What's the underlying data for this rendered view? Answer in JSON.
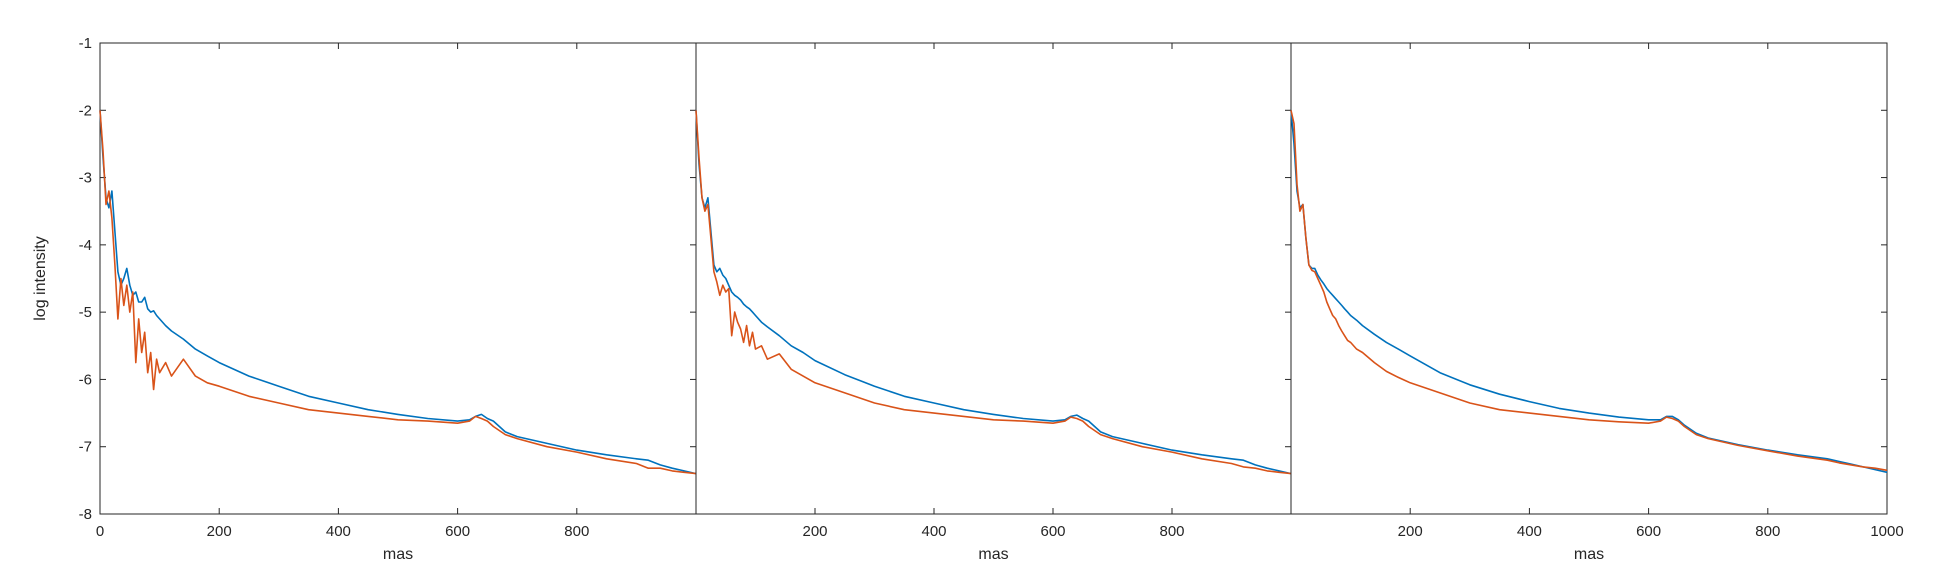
{
  "chart_data": [
    {
      "type": "line",
      "panel": "left",
      "xlabel": "mas",
      "ylabel": "log intensity",
      "xlim": [
        0,
        1000
      ],
      "ylim": [
        -8,
        -1
      ],
      "xticks": [
        0,
        200,
        400,
        600,
        800
      ],
      "yticks": [
        -8,
        -7,
        -6,
        -5,
        -4,
        -3,
        -2,
        -1
      ],
      "grid": false,
      "series": [
        {
          "color": "#0072BD",
          "x": [
            0,
            5,
            10,
            15,
            20,
            25,
            30,
            35,
            40,
            45,
            50,
            55,
            60,
            65,
            70,
            75,
            80,
            85,
            90,
            95,
            100,
            110,
            120,
            140,
            160,
            180,
            200,
            250,
            300,
            350,
            400,
            450,
            500,
            550,
            600,
            620,
            630,
            640,
            650,
            660,
            680,
            700,
            750,
            800,
            850,
            900,
            920,
            940,
            960,
            980,
            1000
          ],
          "y": [
            -2.0,
            -2.7,
            -3.3,
            -3.45,
            -3.2,
            -3.8,
            -4.4,
            -4.6,
            -4.5,
            -4.35,
            -4.6,
            -4.75,
            -4.7,
            -4.85,
            -4.85,
            -4.78,
            -4.95,
            -5.0,
            -4.98,
            -5.05,
            -5.1,
            -5.2,
            -5.28,
            -5.4,
            -5.55,
            -5.65,
            -5.75,
            -5.95,
            -6.1,
            -6.25,
            -6.35,
            -6.45,
            -6.52,
            -6.58,
            -6.62,
            -6.6,
            -6.55,
            -6.52,
            -6.58,
            -6.62,
            -6.78,
            -6.85,
            -6.95,
            -7.05,
            -7.12,
            -7.18,
            -7.2,
            -7.27,
            -7.32,
            -7.36,
            -7.4
          ]
        },
        {
          "color": "#D95319",
          "x": [
            0,
            5,
            10,
            15,
            20,
            25,
            30,
            35,
            40,
            45,
            50,
            55,
            60,
            65,
            70,
            75,
            80,
            85,
            90,
            95,
            100,
            110,
            120,
            140,
            160,
            180,
            200,
            250,
            300,
            350,
            400,
            450,
            500,
            550,
            600,
            620,
            630,
            640,
            650,
            660,
            680,
            700,
            750,
            800,
            850,
            900,
            920,
            940,
            960,
            980,
            1000
          ],
          "y": [
            -2.0,
            -2.6,
            -3.4,
            -3.2,
            -3.6,
            -4.3,
            -5.1,
            -4.5,
            -4.9,
            -4.6,
            -5.0,
            -4.7,
            -5.75,
            -5.1,
            -5.6,
            -5.3,
            -5.9,
            -5.6,
            -6.15,
            -5.7,
            -5.9,
            -5.75,
            -5.95,
            -5.7,
            -5.95,
            -6.05,
            -6.1,
            -6.25,
            -6.35,
            -6.45,
            -6.5,
            -6.55,
            -6.6,
            -6.62,
            -6.65,
            -6.62,
            -6.55,
            -6.58,
            -6.62,
            -6.7,
            -6.82,
            -6.88,
            -7.0,
            -7.08,
            -7.18,
            -7.25,
            -7.32,
            -7.32,
            -7.36,
            -7.38,
            -7.4
          ]
        }
      ]
    },
    {
      "type": "line",
      "panel": "middle",
      "xlabel": "mas",
      "ylabel": "",
      "xlim": [
        0,
        1000
      ],
      "ylim": [
        -8,
        -1
      ],
      "xticks": [
        200,
        400,
        600,
        800
      ],
      "yticks": [],
      "grid": false,
      "series": [
        {
          "color": "#0072BD",
          "x": [
            0,
            5,
            10,
            15,
            20,
            25,
            30,
            35,
            40,
            45,
            50,
            55,
            60,
            65,
            70,
            75,
            80,
            85,
            90,
            95,
            100,
            110,
            120,
            140,
            160,
            180,
            200,
            250,
            300,
            350,
            400,
            450,
            500,
            550,
            600,
            620,
            630,
            640,
            650,
            660,
            680,
            700,
            750,
            800,
            850,
            900,
            920,
            940,
            960,
            980,
            1000
          ],
          "y": [
            -2.0,
            -2.8,
            -3.3,
            -3.45,
            -3.3,
            -3.8,
            -4.3,
            -4.4,
            -4.35,
            -4.45,
            -4.5,
            -4.6,
            -4.7,
            -4.75,
            -4.78,
            -4.82,
            -4.88,
            -4.92,
            -4.95,
            -5.0,
            -5.05,
            -5.15,
            -5.22,
            -5.35,
            -5.5,
            -5.6,
            -5.72,
            -5.93,
            -6.1,
            -6.25,
            -6.35,
            -6.45,
            -6.52,
            -6.58,
            -6.62,
            -6.6,
            -6.55,
            -6.53,
            -6.58,
            -6.62,
            -6.78,
            -6.85,
            -6.95,
            -7.05,
            -7.12,
            -7.18,
            -7.2,
            -7.27,
            -7.32,
            -7.36,
            -7.4
          ]
        },
        {
          "color": "#D95319",
          "x": [
            0,
            5,
            10,
            15,
            20,
            25,
            30,
            35,
            40,
            45,
            50,
            55,
            60,
            65,
            70,
            75,
            80,
            85,
            90,
            95,
            100,
            110,
            120,
            140,
            160,
            180,
            200,
            250,
            300,
            350,
            400,
            450,
            500,
            550,
            600,
            620,
            630,
            640,
            650,
            660,
            680,
            700,
            750,
            800,
            850,
            900,
            920,
            940,
            960,
            980,
            1000
          ],
          "y": [
            -2.0,
            -2.7,
            -3.3,
            -3.5,
            -3.4,
            -3.9,
            -4.4,
            -4.55,
            -4.75,
            -4.6,
            -4.7,
            -4.65,
            -5.35,
            -5.0,
            -5.15,
            -5.25,
            -5.45,
            -5.2,
            -5.5,
            -5.3,
            -5.55,
            -5.5,
            -5.7,
            -5.62,
            -5.85,
            -5.95,
            -6.05,
            -6.2,
            -6.35,
            -6.45,
            -6.5,
            -6.55,
            -6.6,
            -6.62,
            -6.65,
            -6.62,
            -6.56,
            -6.58,
            -6.62,
            -6.7,
            -6.82,
            -6.88,
            -7.0,
            -7.08,
            -7.18,
            -7.25,
            -7.3,
            -7.32,
            -7.36,
            -7.38,
            -7.4
          ]
        }
      ]
    },
    {
      "type": "line",
      "panel": "right",
      "xlabel": "mas",
      "ylabel": "",
      "xlim": [
        0,
        1000
      ],
      "ylim": [
        -8,
        -1
      ],
      "xticks": [
        200,
        400,
        600,
        800,
        1000
      ],
      "yticks": [],
      "grid": false,
      "series": [
        {
          "color": "#0072BD",
          "x": [
            0,
            5,
            10,
            15,
            20,
            25,
            30,
            35,
            40,
            45,
            50,
            55,
            60,
            65,
            70,
            75,
            80,
            85,
            90,
            95,
            100,
            110,
            120,
            140,
            160,
            180,
            200,
            250,
            300,
            350,
            400,
            450,
            500,
            550,
            600,
            620,
            630,
            640,
            650,
            660,
            680,
            700,
            750,
            800,
            850,
            900,
            920,
            940,
            960,
            980,
            1000
          ],
          "y": [
            -2.0,
            -2.5,
            -3.2,
            -3.45,
            -3.4,
            -3.9,
            -4.3,
            -4.35,
            -4.35,
            -4.45,
            -4.52,
            -4.58,
            -4.65,
            -4.7,
            -4.75,
            -4.8,
            -4.85,
            -4.9,
            -4.95,
            -5.0,
            -5.05,
            -5.12,
            -5.2,
            -5.33,
            -5.45,
            -5.55,
            -5.65,
            -5.9,
            -6.08,
            -6.22,
            -6.33,
            -6.43,
            -6.5,
            -6.56,
            -6.6,
            -6.6,
            -6.55,
            -6.55,
            -6.6,
            -6.68,
            -6.8,
            -6.87,
            -6.97,
            -7.05,
            -7.12,
            -7.18,
            -7.22,
            -7.26,
            -7.3,
            -7.34,
            -7.38
          ]
        },
        {
          "color": "#D95319",
          "x": [
            0,
            5,
            10,
            15,
            20,
            25,
            30,
            35,
            40,
            45,
            50,
            55,
            60,
            65,
            70,
            75,
            80,
            85,
            90,
            95,
            100,
            110,
            120,
            140,
            160,
            180,
            200,
            250,
            300,
            350,
            400,
            450,
            500,
            550,
            600,
            620,
            630,
            640,
            650,
            660,
            680,
            700,
            750,
            800,
            850,
            900,
            920,
            940,
            960,
            980,
            1000
          ],
          "y": [
            -2.0,
            -2.2,
            -3.1,
            -3.5,
            -3.4,
            -3.9,
            -4.3,
            -4.38,
            -4.4,
            -4.5,
            -4.6,
            -4.7,
            -4.85,
            -4.95,
            -5.05,
            -5.1,
            -5.2,
            -5.28,
            -5.35,
            -5.42,
            -5.45,
            -5.55,
            -5.6,
            -5.75,
            -5.88,
            -5.97,
            -6.05,
            -6.2,
            -6.35,
            -6.45,
            -6.5,
            -6.55,
            -6.6,
            -6.63,
            -6.65,
            -6.62,
            -6.56,
            -6.58,
            -6.62,
            -6.7,
            -6.82,
            -6.88,
            -6.98,
            -7.06,
            -7.14,
            -7.2,
            -7.24,
            -7.27,
            -7.3,
            -7.32,
            -7.35
          ]
        }
      ]
    }
  ]
}
